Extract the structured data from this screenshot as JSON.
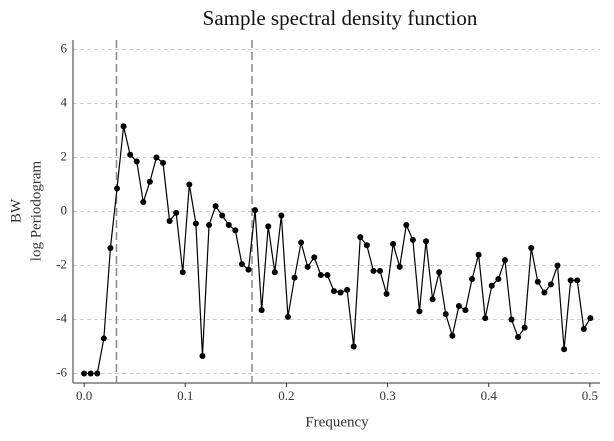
{
  "chart_data": {
    "type": "line",
    "title": "Sample spectral density function",
    "x_label": "Frequency",
    "y_label": [
      "BW",
      "log Periodogram"
    ],
    "x": [
      0,
      0.0065,
      0.013,
      0.0195,
      0.026,
      0.0325,
      0.039,
      0.0455,
      0.052,
      0.0585,
      0.065,
      0.0715,
      0.078,
      0.0845,
      0.091,
      0.0975,
      0.104,
      0.1105,
      0.117,
      0.1235,
      0.13,
      0.1365,
      0.143,
      0.1495,
      0.156,
      0.1625,
      0.169,
      0.1755,
      0.182,
      0.1885,
      0.195,
      0.2015,
      0.208,
      0.2145,
      0.221,
      0.2275,
      0.234,
      0.2405,
      0.247,
      0.2535,
      0.26,
      0.2665,
      0.273,
      0.2795,
      0.286,
      0.2925,
      0.299,
      0.3055,
      0.312,
      0.3185,
      0.325,
      0.3315,
      0.338,
      0.3445,
      0.351,
      0.3575,
      0.364,
      0.3705,
      0.377,
      0.3835,
      0.39,
      0.3965,
      0.403,
      0.4095,
      0.416,
      0.4225,
      0.429,
      0.4355,
      0.442,
      0.4485,
      0.455,
      0.4615,
      0.468,
      0.4745,
      0.481,
      0.4875,
      0.494,
      0.5005
    ],
    "series": [
      {
        "color": "#000000",
        "values": [
          -6.0,
          -6.0,
          -6.0,
          -4.7,
          -1.35,
          0.85,
          3.15,
          2.1,
          1.85,
          0.35,
          1.1,
          2.0,
          1.8,
          -0.35,
          -0.05,
          -2.25,
          1.0,
          -0.45,
          -5.35,
          -0.5,
          0.2,
          -0.15,
          -0.5,
          -0.7,
          -1.95,
          -2.15,
          0.05,
          -3.65,
          -0.55,
          -2.25,
          -0.15,
          -3.9,
          -2.45,
          -1.15,
          -2.05,
          -1.7,
          -2.35,
          -2.35,
          -2.95,
          -3.0,
          -2.9,
          -5.0,
          -0.95,
          -1.25,
          -2.2,
          -2.2,
          -3.05,
          -1.2,
          -2.05,
          -0.5,
          -1.05,
          -3.7,
          -1.1,
          -3.25,
          -2.25,
          -3.8,
          -4.6,
          -3.5,
          -3.65,
          -2.5,
          -1.6,
          -3.95,
          -2.75,
          -2.5,
          -1.8,
          -4.0,
          -4.65,
          -4.3,
          -1.35,
          -2.6,
          -3.0,
          -2.7,
          -2.0,
          -5.1,
          -2.55,
          -2.55,
          -4.35,
          -3.95
        ]
      }
    ],
    "vlines": [
      0.032,
      0.166
    ],
    "xlim": [
      -0.011,
      0.51
    ],
    "ylim": [
      -6.35,
      6.35
    ],
    "xticks": [
      {
        "value": 0,
        "label": "0.0"
      },
      0.1,
      0.2,
      0.3,
      0.4,
      0.5
    ],
    "yticks": [
      -6,
      -4,
      -2,
      0,
      2,
      4,
      6
    ],
    "grid": true
  }
}
